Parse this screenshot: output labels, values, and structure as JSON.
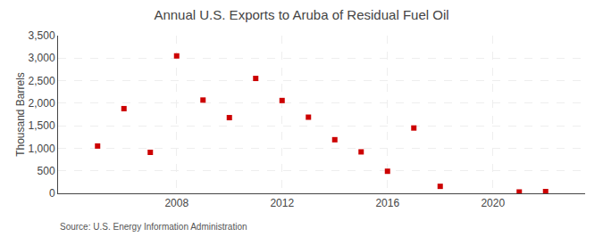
{
  "chart_data": {
    "type": "scatter",
    "title": "Annual U.S. Exports to Aruba of Residual Fuel Oil",
    "y_label": "Thousand Barrels",
    "annotations": [
      "Source: U.S. Energy Information Administration"
    ],
    "x": [
      2005,
      2006,
      2007,
      2008,
      2009,
      2010,
      2011,
      2012,
      2013,
      2014,
      2015,
      2016,
      2017,
      2018,
      2021,
      2022
    ],
    "values": [
      1050,
      1880,
      910,
      3050,
      2070,
      1680,
      2550,
      2060,
      1690,
      1190,
      920,
      490,
      1450,
      155,
      30,
      40
    ],
    "color": "#cc0000",
    "marker": "square",
    "xlim": [
      2003.5,
      2023.5
    ],
    "xticks": [
      2008,
      2012,
      2016,
      2020
    ],
    "ylim": [
      0,
      3500
    ],
    "yticks": [
      0,
      500,
      {
        "value": 1000,
        "label": "1,000"
      },
      {
        "value": 1500,
        "label": "1,500"
      },
      {
        "value": 2000,
        "label": "2,000"
      },
      {
        "value": 2500,
        "label": "2,500"
      },
      {
        "value": 3000,
        "label": "3,000"
      },
      {
        "value": 3500,
        "label": "3,500"
      }
    ],
    "grid": true
  }
}
